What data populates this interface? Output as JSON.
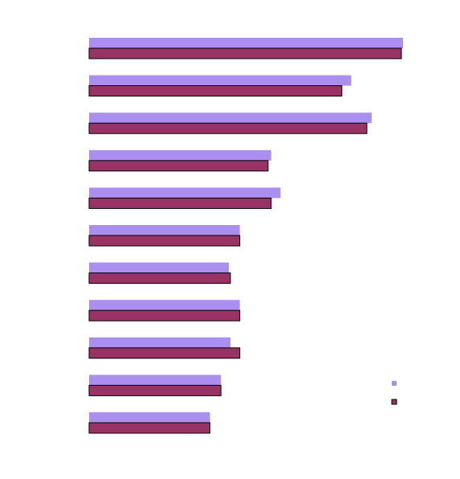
{
  "chart_data": {
    "type": "bar",
    "orientation": "horizontal",
    "categories": [
      "",
      "",
      "",
      "",
      "",
      "",
      "",
      "",
      "",
      "",
      ""
    ],
    "xlim": [
      0,
      100
    ],
    "grid": false,
    "legend_position": "right",
    "series": [
      {
        "values": [
          100,
          83.5,
          90,
          58,
          61,
          48,
          44.5,
          48,
          45,
          42,
          38.5
        ]
      },
      {
        "values": [
          99.5,
          80.5,
          88.5,
          57,
          58,
          48,
          45,
          48,
          48,
          42,
          38.5
        ]
      }
    ],
    "colors": [
      "#aa8ff0",
      "#993366"
    ],
    "edge_colors": [
      "none",
      "#000000"
    ]
  }
}
